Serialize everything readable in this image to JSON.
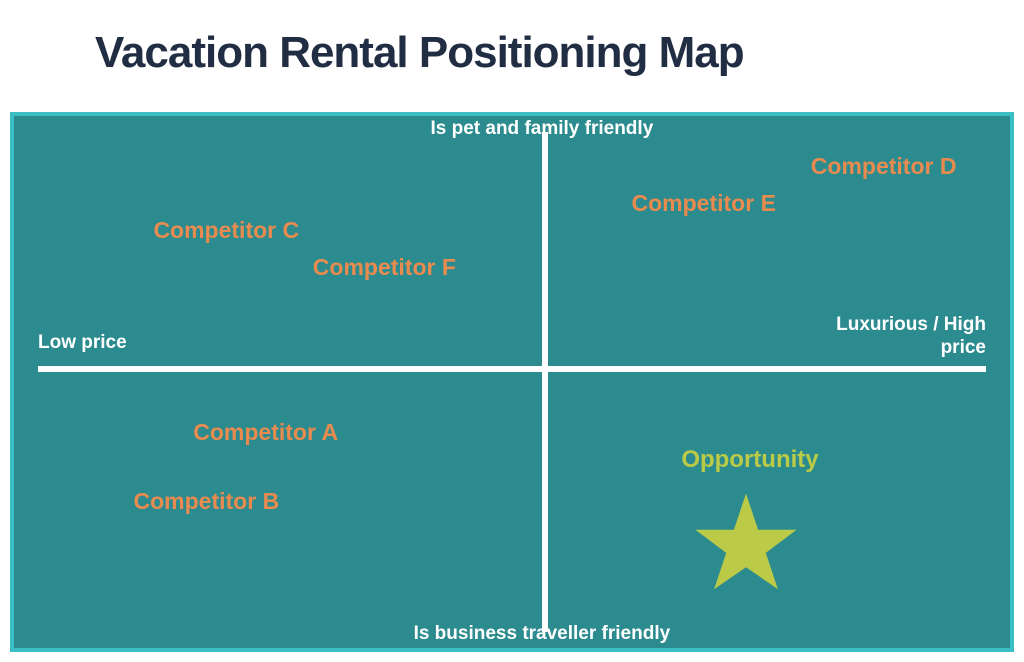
{
  "title": "Vacation Rental Positioning Map",
  "title_color": "#212d42",
  "title_fontsize": 44,
  "chart": {
    "background_color": "#2c8b8e",
    "border_color": "#3bbfc4",
    "border_width": 4,
    "axis_color": "#ffffff",
    "axis_label_color": "#ffffff",
    "axis_label_fontsize": 19,
    "competitor_color": "#e98b4f",
    "competitor_fontsize": 23,
    "opportunity_color": "#bccb47",
    "opportunity_fontsize": 24,
    "star_color": "#bccb47",
    "x_axis": {
      "left_label": "Low price",
      "right_label": "Luxurious / High price",
      "y_percent": 47
    },
    "y_axis": {
      "top_label": "Is pet and family friendly",
      "bottom_label": "Is business traveller friendly",
      "x_percent": 53
    },
    "competitors": [
      {
        "label": "Competitor A",
        "x_percent": 18,
        "y_percent": 57
      },
      {
        "label": "Competitor B",
        "x_percent": 12,
        "y_percent": 70
      },
      {
        "label": "Competitor C",
        "x_percent": 14,
        "y_percent": 19
      },
      {
        "label": "Competitor D",
        "x_percent": 80,
        "y_percent": 7
      },
      {
        "label": "Competitor E",
        "x_percent": 62,
        "y_percent": 14
      },
      {
        "label": "Competitor F",
        "x_percent": 30,
        "y_percent": 26
      }
    ],
    "opportunity": {
      "label": "Opportunity",
      "label_x_percent": 67,
      "label_y_percent": 62,
      "star_x_percent": 68,
      "star_y_percent": 70,
      "star_size": 110
    }
  }
}
